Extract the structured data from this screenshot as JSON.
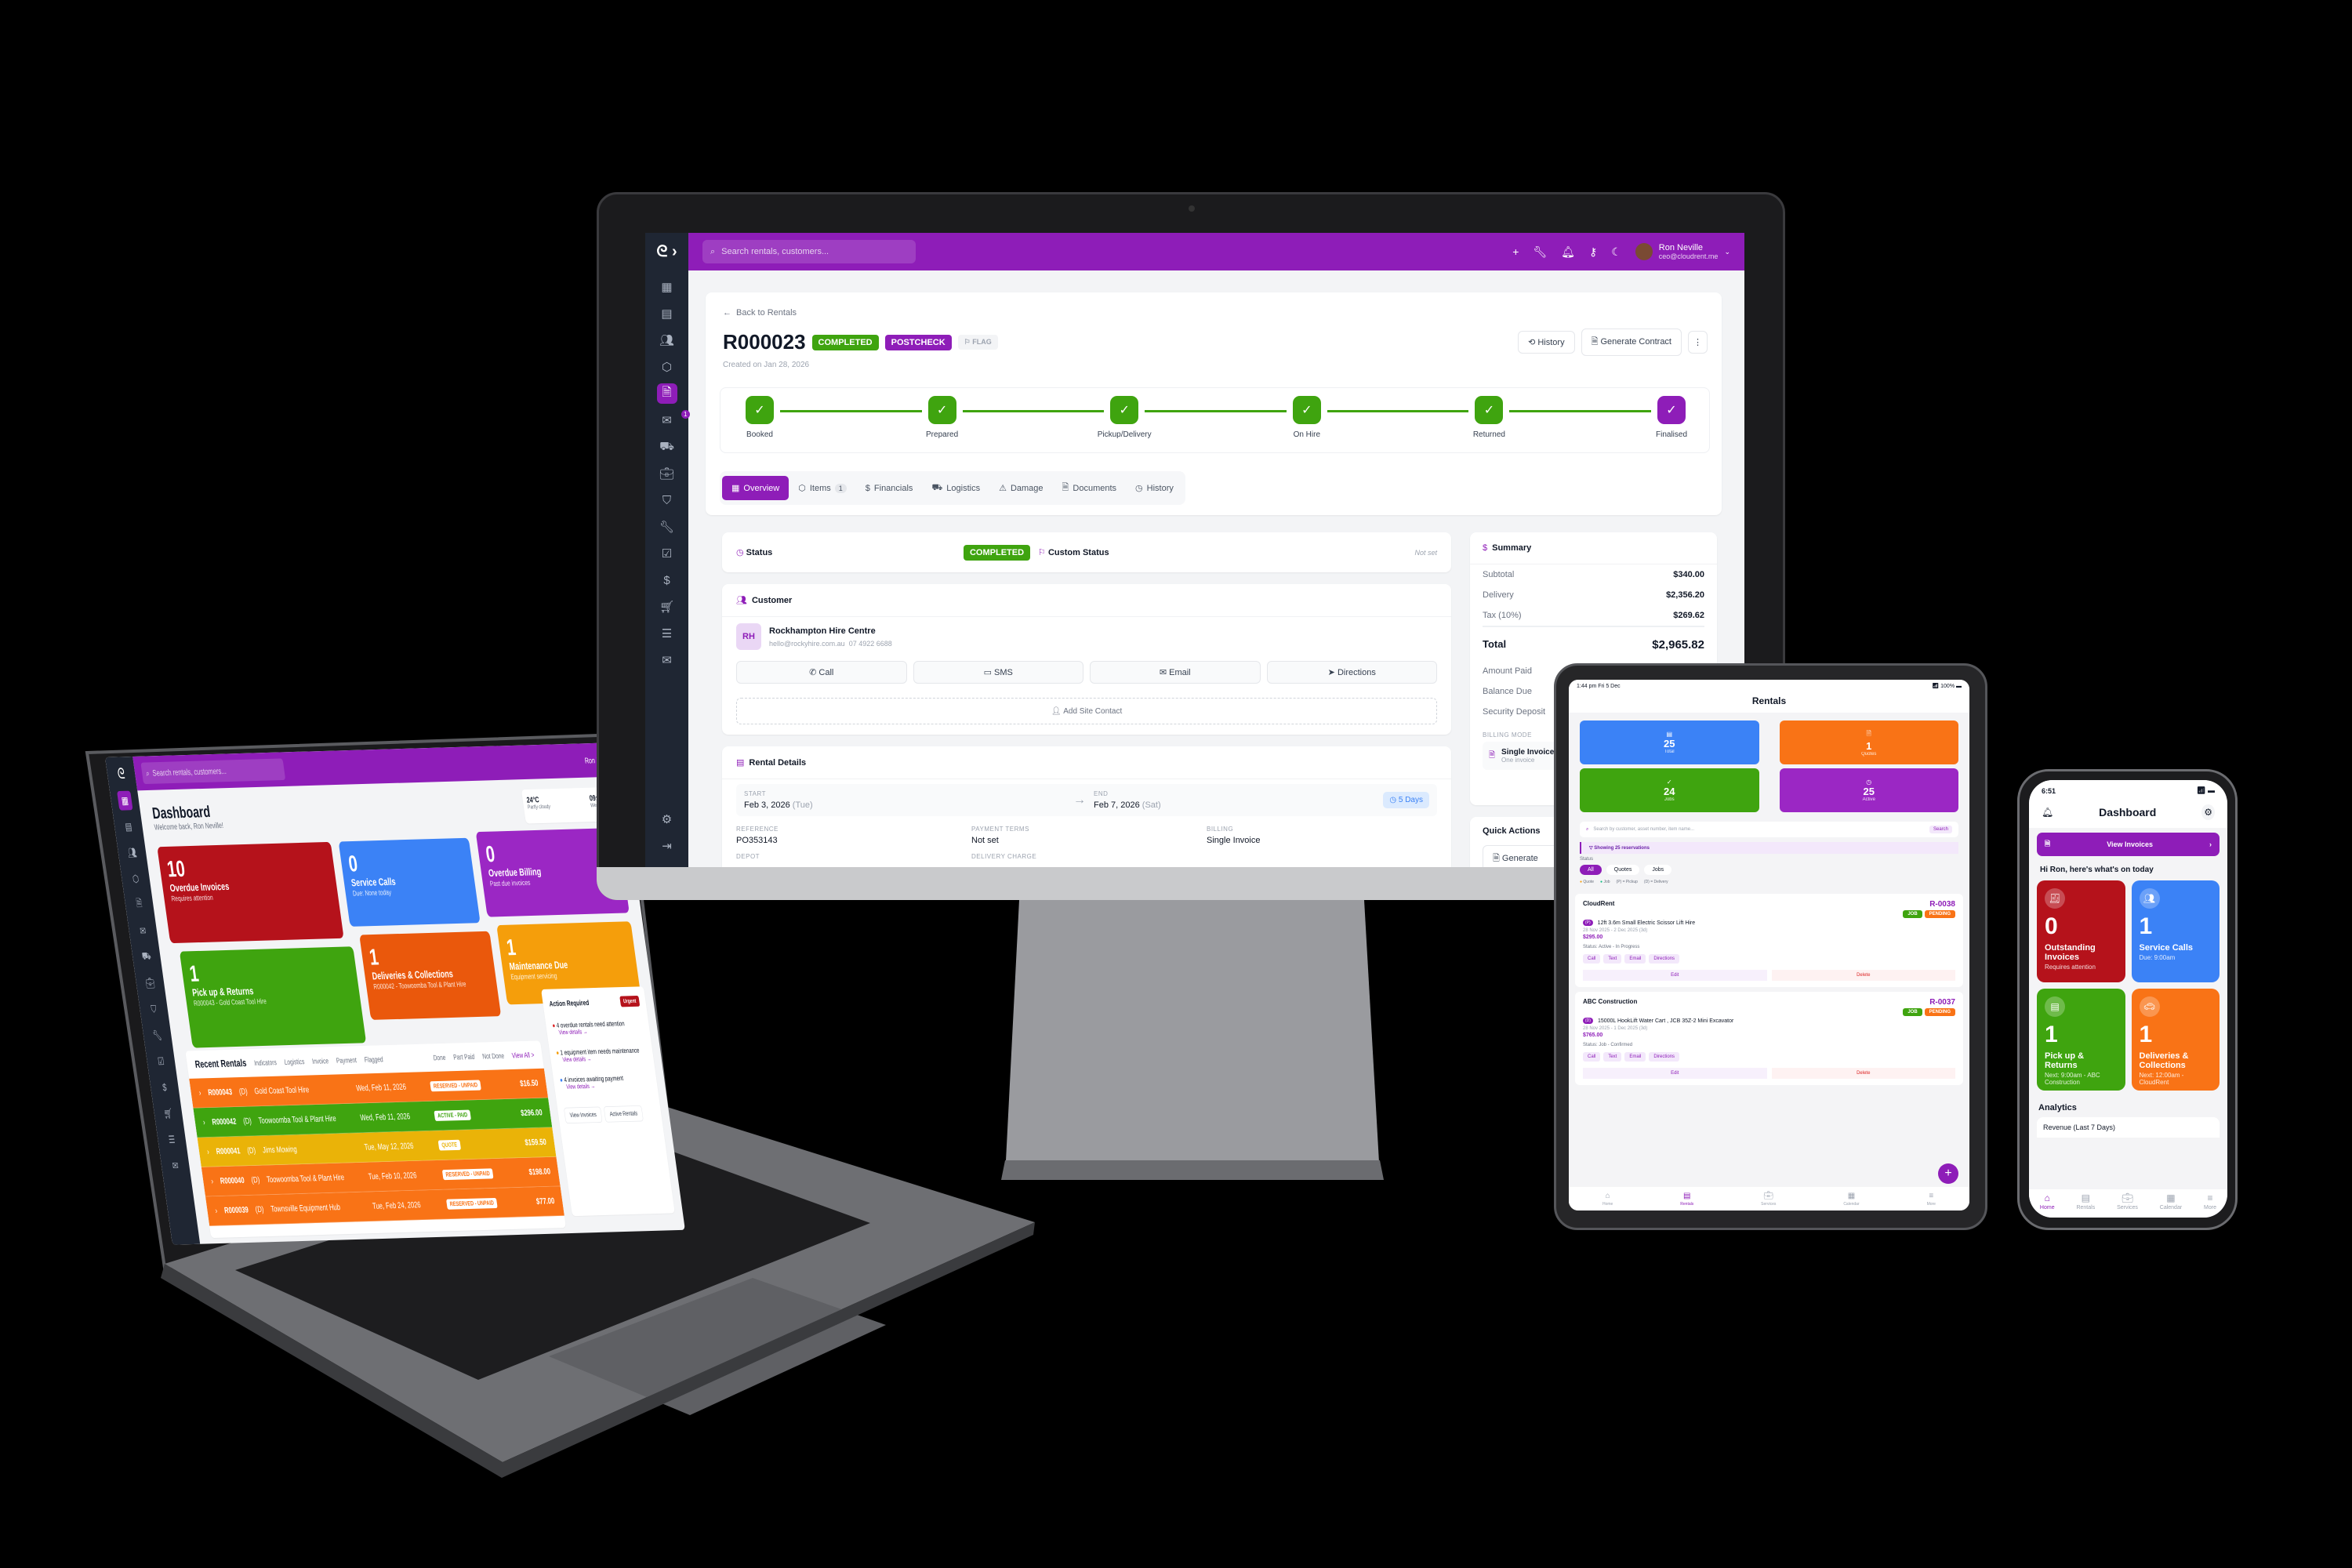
{
  "colors": {
    "brand": "#8e1db8",
    "green": "#3fa40f",
    "red": "#b5121b",
    "blue": "#3b82f6",
    "orange": "#f97316",
    "amber": "#f59e0b",
    "sidebar": "#1f2633"
  },
  "monitor": {
    "search_placeholder": "Search rentals, customers...",
    "user": {
      "name": "Ron Neville",
      "email": "ceo@cloudrent.me"
    },
    "sidebar_icons": [
      "grid-icon",
      "calendar-icon",
      "users-icon",
      "box-icon",
      "document-icon",
      "inbox-icon",
      "truck-icon",
      "briefcase-icon",
      "shield-icon",
      "wrench-icon",
      "clipboard-check-icon",
      "dollar-icon",
      "cart-icon",
      "clipboard-list-icon",
      "mail-icon"
    ],
    "inbox_badge": "1",
    "back_link": "Back to Rentals",
    "rental_id": "R000023",
    "status_badge": "COMPLETED",
    "stage_badge": "POSTCHECK",
    "flag_label": "FLAG",
    "created": "Created on Jan 28, 2026",
    "history_button": "History",
    "contract_button": "Generate Contract",
    "steps": [
      {
        "label": "Booked",
        "done": true
      },
      {
        "label": "Prepared",
        "done": true
      },
      {
        "label": "Pickup/Delivery",
        "done": true
      },
      {
        "label": "On Hire",
        "done": true
      },
      {
        "label": "Returned",
        "done": true
      },
      {
        "label": "Finalised",
        "done": true,
        "current": true
      }
    ],
    "tabs": [
      {
        "label": "Overview",
        "icon": "grid-icon",
        "active": true
      },
      {
        "label": "Items",
        "icon": "box-icon",
        "count": "1"
      },
      {
        "label": "Financials",
        "icon": "dollar-icon"
      },
      {
        "label": "Logistics",
        "icon": "truck-icon"
      },
      {
        "label": "Damage",
        "icon": "warning-icon"
      },
      {
        "label": "Documents",
        "icon": "document-icon"
      },
      {
        "label": "History",
        "icon": "clock-icon"
      }
    ],
    "status_card": {
      "title": "Status",
      "value": "COMPLETED",
      "custom_label": "Custom Status",
      "custom_value": "Not set"
    },
    "customer": {
      "title": "Customer",
      "initials": "RH",
      "name": "Rockhampton Hire Centre",
      "email": "hello@rockyhire.com.au",
      "phone": "07 4922 6688",
      "actions": [
        "Call",
        "SMS",
        "Email",
        "Directions"
      ],
      "add_contact": "Add Site Contact"
    },
    "rental_details": {
      "title": "Rental Details",
      "start_label": "START",
      "start": "Feb 3, 2026",
      "start_day": "(Tue)",
      "end_label": "END",
      "end": "Feb 7, 2026",
      "end_day": "(Sat)",
      "duration": "5 Days",
      "fields": [
        {
          "label": "REFERENCE",
          "value": "PO353143"
        },
        {
          "label": "PAYMENT TERMS",
          "value": "Not set"
        },
        {
          "label": "BILLING",
          "value": "Single Invoice"
        }
      ],
      "more_labels": [
        "DEPOT",
        "DELIVERY CHARGE"
      ]
    },
    "summary": {
      "title": "Summary",
      "rows": [
        {
          "label": "Subtotal",
          "value": "$340.00"
        },
        {
          "label": "Delivery",
          "value": "$2,356.20"
        },
        {
          "label": "Tax (10%)",
          "value": "$269.62"
        }
      ],
      "total_label": "Total",
      "total": "$2,965.82",
      "extra": [
        "Amount Paid",
        "Balance Due",
        "Security Deposit"
      ],
      "billing_mode_label": "BILLING MODE",
      "billing_mode": "Single Invoice",
      "billing_mode_sub": "One invoice"
    },
    "quick_actions": {
      "title": "Quick Actions",
      "first": "Generate"
    }
  },
  "tablet": {
    "time": "1:44 pm  Fri 5 Dec",
    "battery": "100%",
    "title": "Rentals",
    "stats": [
      {
        "value": "25",
        "label": "Total",
        "color": "#3b82f6",
        "icon": "calendar-icon"
      },
      {
        "value": "1",
        "label": "Quotes",
        "color": "#f97316",
        "icon": "document-icon"
      },
      {
        "value": "24",
        "label": "Jobs",
        "color": "#3fa40f",
        "icon": "check-circle-icon"
      },
      {
        "value": "25",
        "label": "Active",
        "color": "#9b27c4",
        "icon": "clock-icon"
      }
    ],
    "search_placeholder": "Search by customer, asset number, item name...",
    "search_button": "Search",
    "showing": "Showing 25 reservations",
    "status_label": "Status",
    "filters": [
      "All",
      "Quotes",
      "Jobs"
    ],
    "legend": [
      "Quote",
      "Job",
      "(P) = Pickup",
      "(D) = Delivery"
    ],
    "rentals": [
      {
        "customer": "CloudRent",
        "id": "R-0038",
        "type": "JOB",
        "state": "PENDING",
        "mode": "P",
        "item": "12ft 3.6m Small Electric Scissor Lift Hire",
        "dates": "28 Nov 2025 - 2 Dec 2025 (3d)",
        "price": "$295.00",
        "status": "Status:  Active - In Progress"
      },
      {
        "customer": "ABC Construction",
        "id": "R-0037",
        "type": "JOB",
        "state": "PENDING",
        "mode": "D",
        "item": "15000L HookLift Water Cart , JCB 35Z-2 Mini Excavator",
        "dates": "28 Nov 2025 - 1 Dec 2025 (3d)",
        "price": "$765.00",
        "status": "Status:  Job - Confirmed"
      }
    ],
    "actions": [
      "Call",
      "Text",
      "Email",
      "Directions"
    ],
    "edit": "Edit",
    "delete": "Delete",
    "nav": [
      "Home",
      "Rentals",
      "Services",
      "Calendar",
      "More"
    ]
  },
  "phone": {
    "time": "6:51",
    "title": "Dashboard",
    "banner": "View Invoices",
    "greeting": "Hi Ron, here's what's on today",
    "cards": [
      {
        "value": "0",
        "title": "Outstanding Invoices",
        "sub": "Requires attention",
        "color": "#b5121b",
        "icon": "invoice-icon"
      },
      {
        "value": "1",
        "title": "Service Calls",
        "sub": "Due: 9:00am",
        "color": "#3b82f6",
        "icon": "users-icon"
      },
      {
        "value": "1",
        "title": "Pick up & Returns",
        "sub": "Next: 9:00am - ABC Construction",
        "color": "#3fa40f",
        "icon": "calendar-icon"
      },
      {
        "value": "1",
        "title": "Deliveries & Collections",
        "sub": "Next: 12:00am - CloudRent",
        "color": "#f97316",
        "icon": "car-icon"
      }
    ],
    "analytics": "Analytics",
    "revenue": "Revenue (Last 7 Days)",
    "nav": [
      "Home",
      "Rentals",
      "Services",
      "Calendar",
      "More"
    ]
  },
  "laptop": {
    "search_placeholder": "Search rentals, customers...",
    "user": "Ron Neville",
    "weather": {
      "temp": "24°C",
      "desc": "Partly cloudy",
      "time": "09:57 PM",
      "date": "Wed, Feb 11"
    },
    "title": "Dashboard",
    "welcome": "Welcome back, Ron Neville!",
    "cards": [
      {
        "value": "10",
        "title": "Overdue Invoices",
        "sub": "Requires attention",
        "color": "#b5121b"
      },
      {
        "value": "0",
        "title": "Service Calls",
        "sub": "Due: None today",
        "color": "#3b82f6"
      },
      {
        "value": "0",
        "title": "Overdue Billing",
        "sub": "Past due invoices",
        "color": "#9b27c4"
      },
      {
        "value": "1",
        "title": "Pick up & Returns",
        "sub": "R000043 - Gold Coast Tool Hire",
        "color": "#3fa40f"
      },
      {
        "value": "1",
        "title": "Deliveries & Collections",
        "sub": "R000042 - Toowoomba Tool & Plant Hire",
        "color": "#ea580c"
      },
      {
        "value": "1",
        "title": "Maintenance Due",
        "sub": "Equipment servicing",
        "color": "#f59e0b"
      }
    ],
    "recent_title": "Recent Rentals",
    "view_all": "View All >",
    "indicators": [
      "Indicators",
      "Logistics",
      "Invoice",
      "Payment",
      "Flagged"
    ],
    "legend": [
      "Done",
      "Part Paid",
      "Not Done"
    ],
    "rows": [
      {
        "id": "R000043",
        "mode": "(D)",
        "customer": "Gold Coast Tool Hire",
        "date": "Wed, Feb 11, 2026",
        "status": "RESERVED - UNPAID",
        "amount": "$16.50",
        "color": "#f97316"
      },
      {
        "id": "R000042",
        "mode": "(D)",
        "customer": "Toowoomba Tool & Plant Hire",
        "date": "Wed, Feb 11, 2026",
        "status": "ACTIVE - PAID",
        "amount": "$296.00",
        "color": "#3fa40f"
      },
      {
        "id": "R000041",
        "mode": "(D)",
        "customer": "Jims Mowing",
        "date": "Tue, May 12, 2026",
        "status": "QUOTE",
        "amount": "$159.50",
        "color": "#eab308"
      },
      {
        "id": "R000040",
        "mode": "(D)",
        "customer": "Toowoomba Tool & Plant Hire",
        "date": "Tue, Feb 10, 2026",
        "status": "RESERVED - UNPAID",
        "amount": "$198.00",
        "color": "#f97316"
      },
      {
        "id": "R000039",
        "mode": "(D)",
        "customer": "Townsville Equipment Hub",
        "date": "Tue, Feb 24, 2026",
        "status": "RESERVED - UNPAID",
        "amount": "$77.00",
        "color": "#f97316"
      }
    ],
    "action_title": "Action Required",
    "urgent": "Urgent",
    "actions": [
      {
        "text": "4 overdue rentals need attention",
        "link": "View details →"
      },
      {
        "text": "1 equipment item needs maintenance",
        "link": "View details →"
      },
      {
        "text": "4 invoices awaiting payment",
        "link": "View details →"
      }
    ],
    "footer_buttons": [
      "View Invoices",
      "Active Rentals"
    ]
  }
}
